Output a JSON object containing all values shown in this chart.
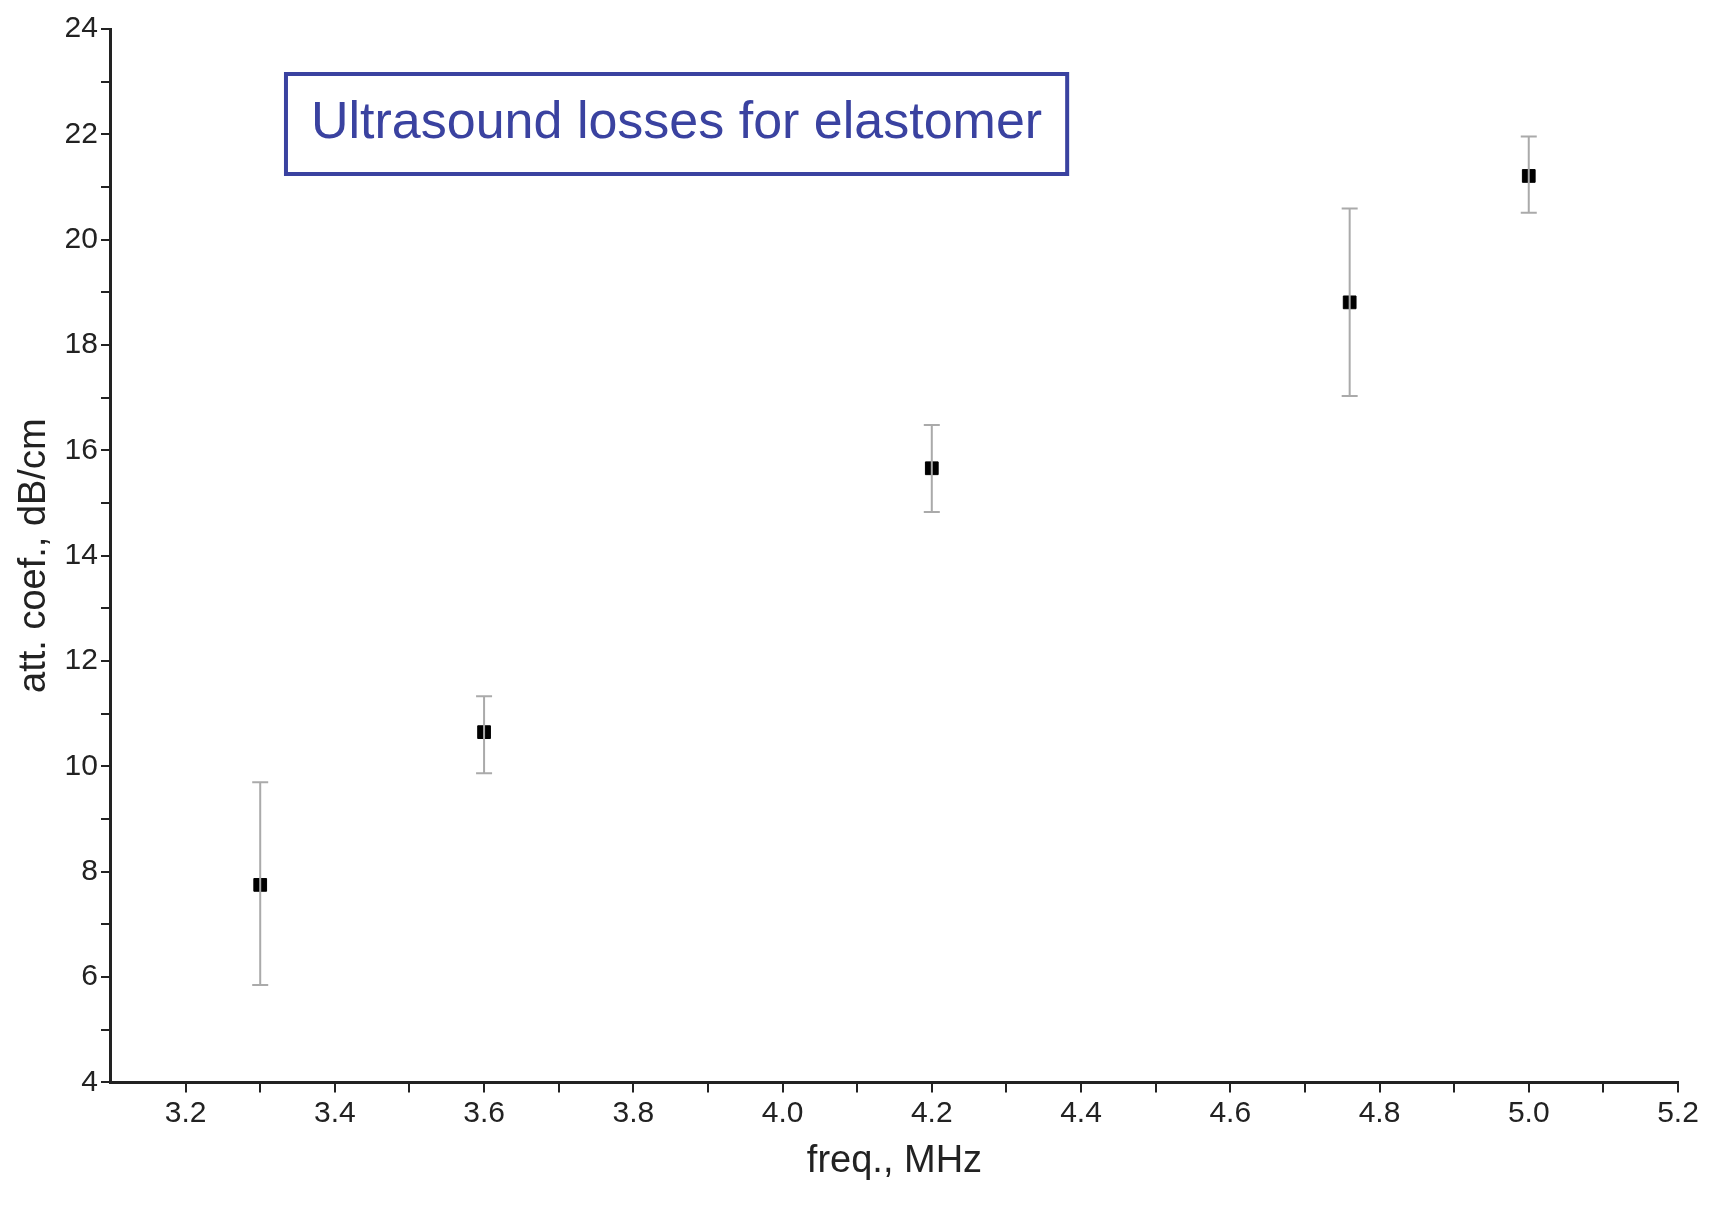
{
  "chart_data": {
    "type": "scatter",
    "title": "Ultrasound losses for elastomer",
    "xlabel": "freq., MHz",
    "ylabel": "att. coef., dB/cm",
    "x": [
      3.3,
      3.6,
      4.2,
      4.76,
      5.0
    ],
    "series": [
      {
        "color": "#000000",
        "values": [
          7.75,
          10.65,
          15.66,
          18.81,
          21.21
        ],
        "errors": [
          [
            5.85,
            9.7
          ],
          [
            9.87,
            11.33
          ],
          [
            14.83,
            16.48
          ],
          [
            17.03,
            20.59
          ],
          [
            20.51,
            21.96
          ]
        ]
      }
    ],
    "marker": "square",
    "grid": false,
    "legend": false,
    "xlim": [
      3.1,
      5.2
    ],
    "xticks": [
      3.2,
      {
        "value": 3.3,
        "label": null
      },
      3.4,
      {
        "value": 3.5,
        "label": null
      },
      3.6,
      {
        "value": 3.7,
        "label": null
      },
      3.8,
      {
        "value": 3.9,
        "label": null
      },
      {
        "value": 4.0,
        "label": "4.0"
      },
      {
        "value": 4.1,
        "label": null
      },
      4.2,
      {
        "value": 4.3,
        "label": null
      },
      4.4,
      {
        "value": 4.5,
        "label": null
      },
      4.6,
      {
        "value": 4.7,
        "label": null
      },
      4.8,
      {
        "value": 4.9,
        "label": null
      },
      {
        "value": 5.0,
        "label": "5.0"
      },
      {
        "value": 5.1,
        "label": null
      },
      5.2
    ],
    "ylim": [
      4,
      24
    ],
    "yticks": [
      4,
      {
        "value": 5,
        "label": null
      },
      6,
      {
        "value": 7,
        "label": null
      },
      8,
      {
        "value": 9,
        "label": null
      },
      10,
      {
        "value": 11,
        "label": null
      },
      12,
      {
        "value": 13,
        "label": null
      },
      14,
      {
        "value": 15,
        "label": null
      },
      16,
      {
        "value": 17,
        "label": null
      },
      18,
      {
        "value": 19,
        "label": null
      },
      20,
      {
        "value": 21,
        "label": null
      },
      22,
      {
        "value": 23,
        "label": null
      },
      24
    ]
  }
}
